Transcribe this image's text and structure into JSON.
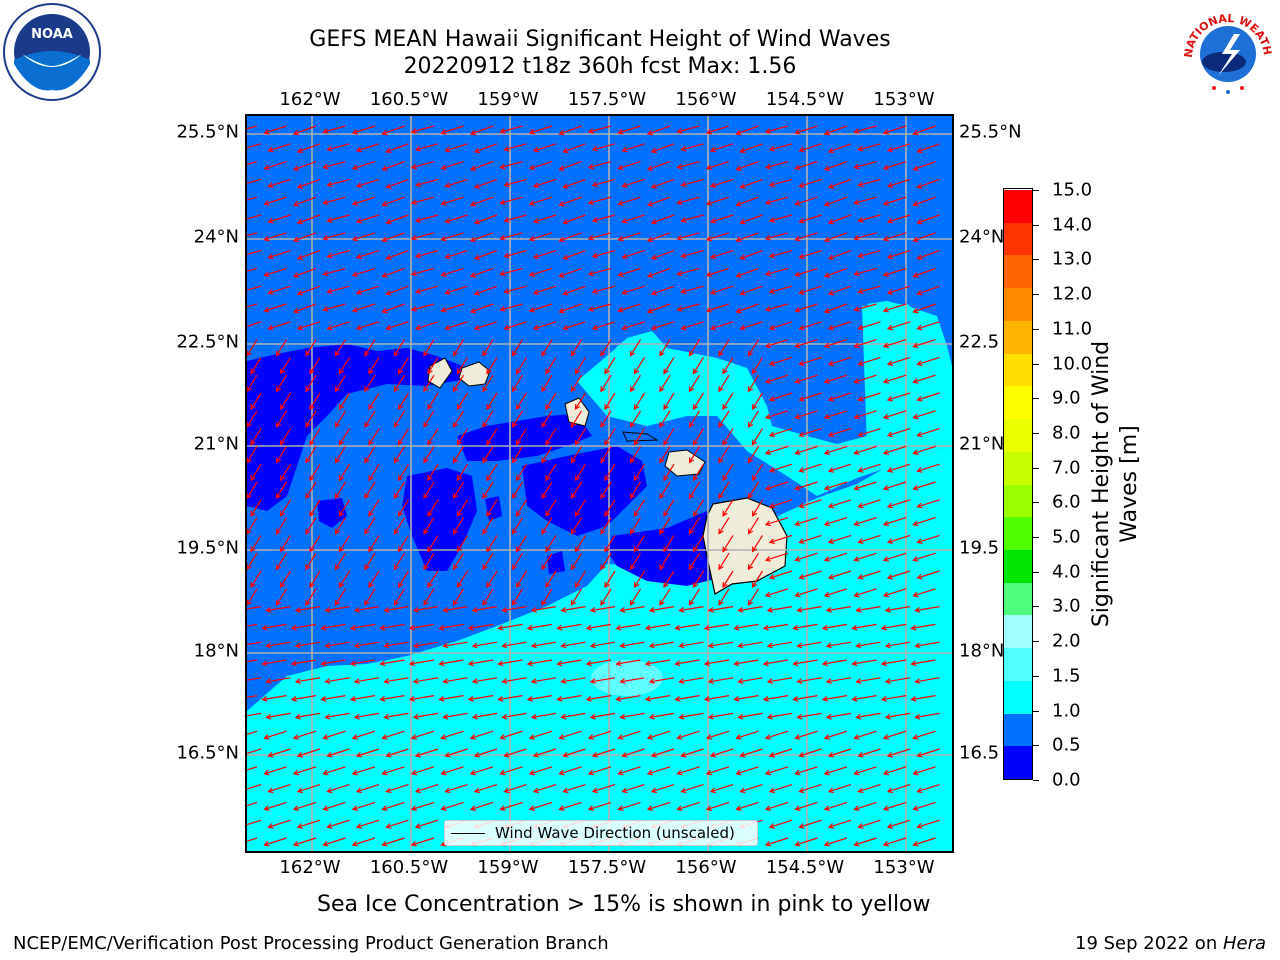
{
  "header": {
    "title_line1": "GEFS MEAN Hawaii Significant Height of Wind Waves",
    "title_line2": "20220912 t18z 360h fcst   Max: 1.56"
  },
  "logos": {
    "left": "NOAA",
    "right": "NATIONAL WEATHER SERVICE"
  },
  "map": {
    "lon_ticks": [
      "162°W",
      "160.5°W",
      "159°W",
      "157.5°W",
      "156°W",
      "154.5°W",
      "153°W"
    ],
    "lat_ticks": [
      "25.5°N",
      "24°N",
      "22.5°N",
      "21°N",
      "19.5°N",
      "18°N",
      "16.5°N"
    ],
    "lat_ticks_right": [
      "25.5°N",
      "24°N",
      "22.5",
      "21°N",
      "19.5",
      "18°N",
      "16.5"
    ],
    "legend_label": "Wind Wave Direction (unscaled)",
    "colors": {
      "land": "#efedd9",
      "arrow": "#ff0000",
      "grid": "#b0b0b0"
    }
  },
  "colorbar": {
    "label_line1": "Significant Height of Wind",
    "label_line2": "Waves [m]",
    "ticks": [
      "15.0",
      "14.0",
      "13.0",
      "12.0",
      "11.0",
      "10.0",
      "9.0",
      "8.0",
      "7.0",
      "6.0",
      "5.0",
      "4.0",
      "3.0",
      "2.0",
      "1.5",
      "1.0",
      "0.5",
      "0.0"
    ],
    "bands": [
      {
        "color": "#0000ff"
      },
      {
        "color": "#0070ff"
      },
      {
        "color": "#00ffff"
      },
      {
        "color": "#50ffff"
      },
      {
        "color": "#a0ffff"
      },
      {
        "color": "#50ff80"
      },
      {
        "color": "#00e600"
      },
      {
        "color": "#50ff00"
      },
      {
        "color": "#9cff00"
      },
      {
        "color": "#c8ff00"
      },
      {
        "color": "#eaff00"
      },
      {
        "color": "#ffff00"
      },
      {
        "color": "#ffde00"
      },
      {
        "color": "#ffb400"
      },
      {
        "color": "#ff8a00"
      },
      {
        "color": "#ff6400"
      },
      {
        "color": "#ff3200"
      },
      {
        "color": "#ff0000"
      }
    ]
  },
  "note": "Sea Ice Concentration > 15% is shown in pink to yellow",
  "footer": {
    "left": "NCEP/EMC/Verification Post Processing Product Generation Branch",
    "right_date": "19 Sep 2022 on ",
    "right_machine": "Hera"
  }
}
